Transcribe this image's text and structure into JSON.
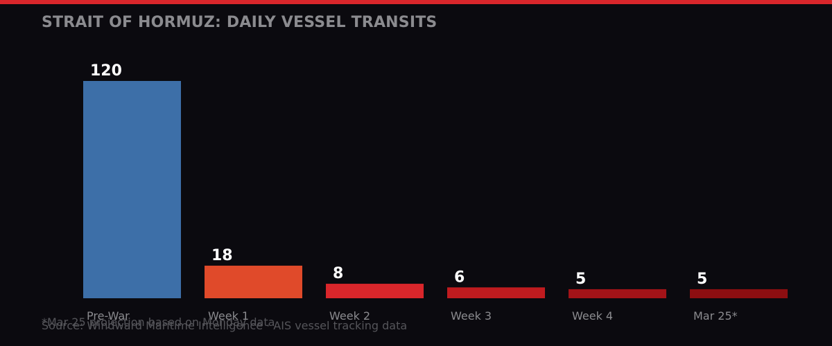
{
  "title": "STRAIT OF HORMUZ: DAILY VESSEL TRANSITS",
  "footnote": "*Mar 25 projection based on Monday data",
  "source": "Source: Windward Maritime Intelligence · AIS vessel tracking data",
  "colors": {
    "background": "#0b0a0f",
    "accent_bar": "#d9262b",
    "title": "#8b8b8f",
    "value_label": "#ffffff",
    "tick_label": "#8b8b8f"
  },
  "chart_data": {
    "type": "bar",
    "title": "STRAIT OF HORMUZ: DAILY VESSEL TRANSITS",
    "xlabel": "",
    "ylabel": "",
    "categories": [
      "Pre-War",
      "Week 1",
      "Week 2",
      "Week 3",
      "Week 4",
      "Mar 25*"
    ],
    "values": [
      120,
      18,
      8,
      6,
      5,
      5
    ],
    "colors": [
      "#3d6fa8",
      "#e04a2a",
      "#d9262b",
      "#c01b1f",
      "#a31318",
      "#8d0e11"
    ],
    "ylim": [
      0,
      120
    ],
    "grid": false,
    "legend": "none"
  }
}
